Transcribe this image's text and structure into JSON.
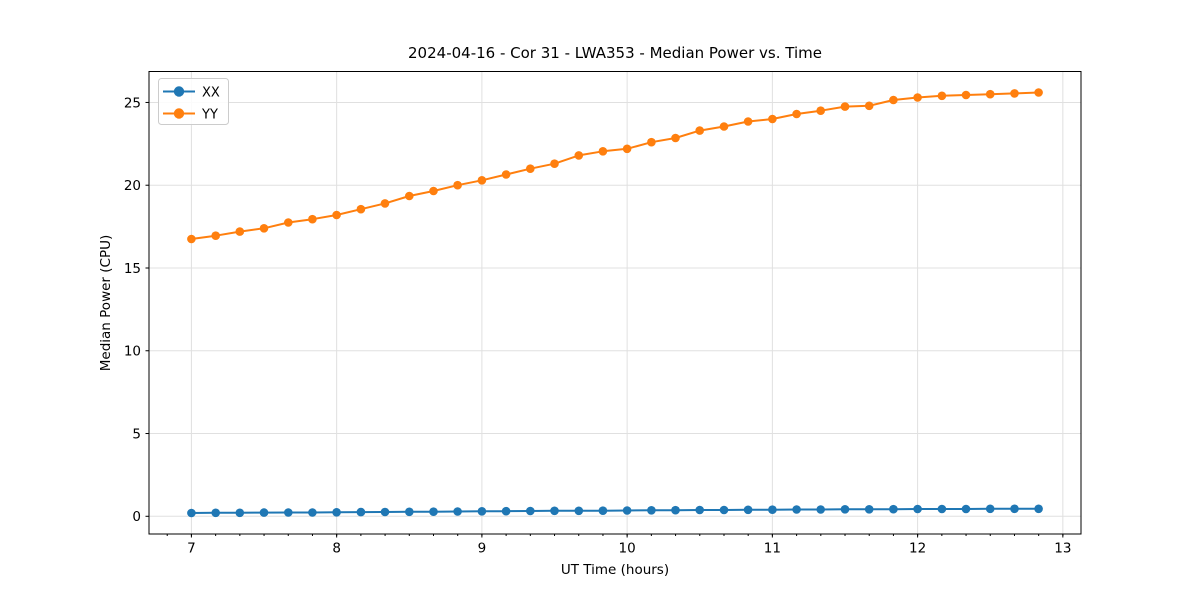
{
  "chart_data": {
    "type": "line",
    "title": "2024-04-16 - Cor 31 - LWA353 - Median Power vs. Time",
    "xlabel": "UT Time (hours)",
    "ylabel": "Median Power (CPU)",
    "x": [
      7.0,
      7.167,
      7.333,
      7.5,
      7.667,
      7.833,
      8.0,
      8.167,
      8.333,
      8.5,
      8.667,
      8.833,
      9.0,
      9.167,
      9.333,
      9.5,
      9.667,
      9.833,
      10.0,
      10.167,
      10.333,
      10.5,
      10.667,
      10.833,
      11.0,
      11.167,
      11.333,
      11.5,
      11.667,
      11.833,
      12.0,
      12.167,
      12.333,
      12.5,
      12.667,
      12.833
    ],
    "series": [
      {
        "name": "XX",
        "color": "#1f77b4",
        "marker": "circle",
        "values": [
          0.2,
          0.21,
          0.21,
          0.22,
          0.23,
          0.23,
          0.24,
          0.25,
          0.26,
          0.27,
          0.28,
          0.29,
          0.3,
          0.31,
          0.32,
          0.33,
          0.33,
          0.34,
          0.35,
          0.36,
          0.37,
          0.38,
          0.38,
          0.39,
          0.4,
          0.41,
          0.41,
          0.42,
          0.42,
          0.43,
          0.44,
          0.44,
          0.44,
          0.45,
          0.45,
          0.45
        ]
      },
      {
        "name": "YY",
        "color": "#ff7f0e",
        "marker": "circle",
        "values": [
          16.75,
          16.95,
          17.2,
          17.4,
          17.75,
          17.95,
          18.2,
          18.55,
          18.9,
          19.35,
          19.65,
          20.0,
          20.3,
          20.65,
          21.0,
          21.3,
          21.8,
          22.05,
          22.2,
          22.6,
          22.85,
          23.3,
          23.55,
          23.85,
          24.0,
          24.3,
          24.5,
          24.75,
          24.8,
          25.15,
          25.3,
          25.4,
          25.45,
          25.5,
          25.55,
          25.6
        ]
      }
    ],
    "xlim": [
      6.708,
      13.125
    ],
    "ylim": [
      -1.07,
      26.87
    ],
    "xticks": [
      7,
      8,
      9,
      10,
      11,
      12,
      13
    ],
    "yticks": [
      0,
      5,
      10,
      15,
      20,
      25
    ],
    "minor_xtick_step": 0.16667,
    "grid": true,
    "legend_position": "upper left"
  }
}
